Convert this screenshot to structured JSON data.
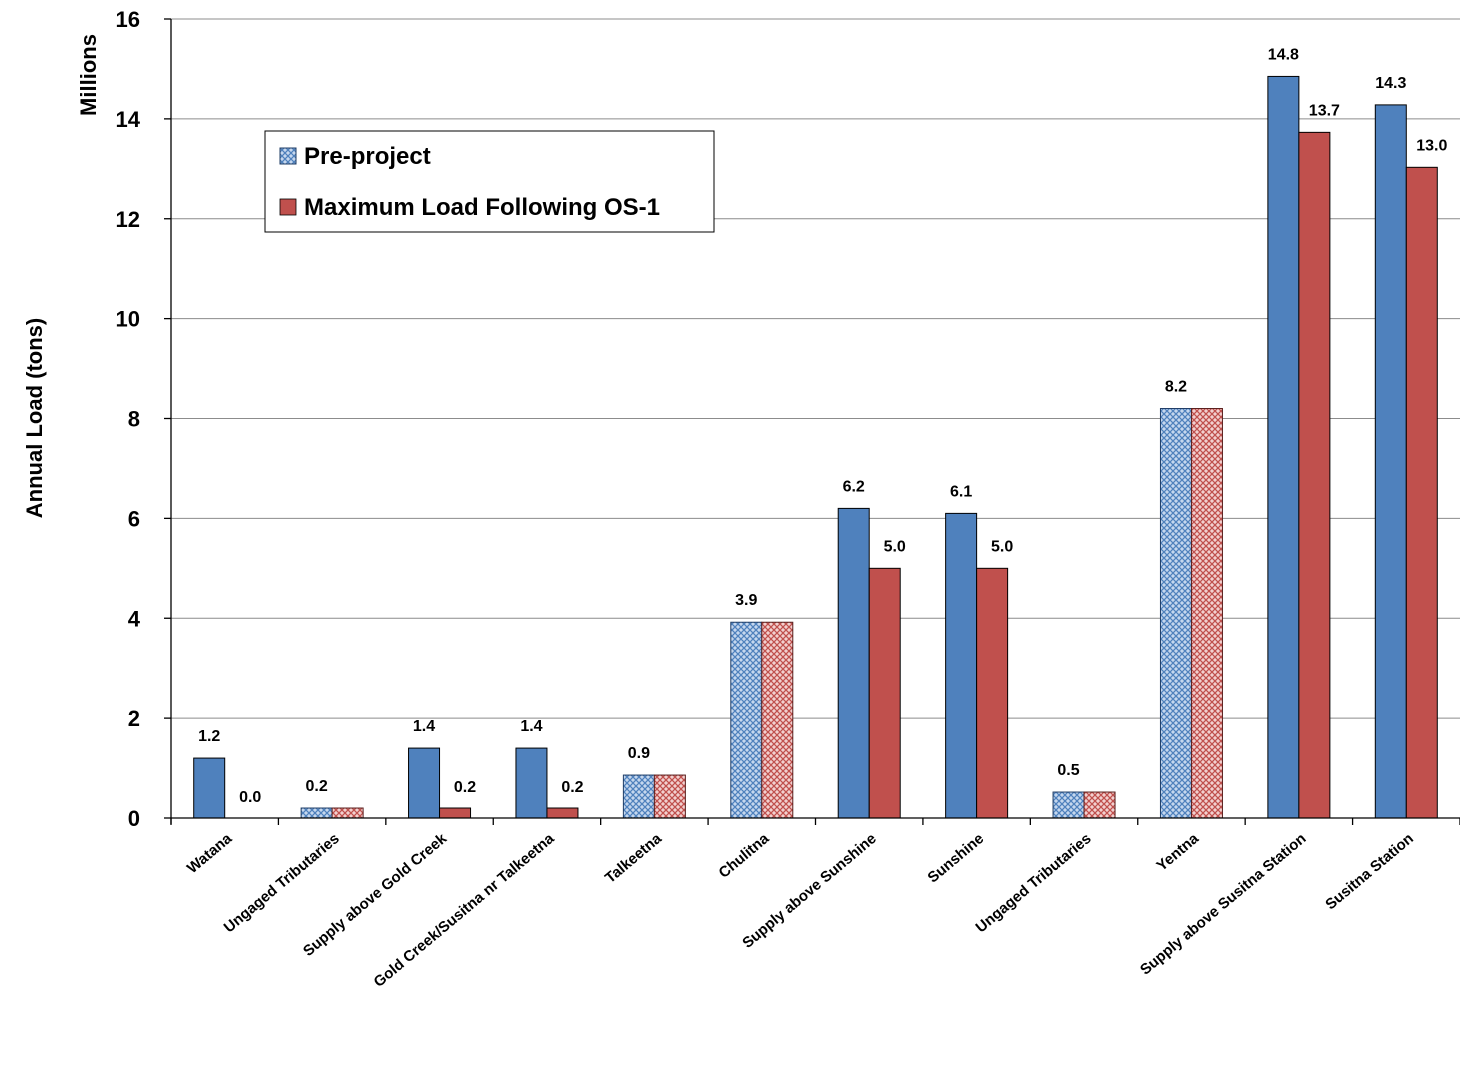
{
  "chart_data": {
    "type": "bar",
    "ylabel": "Annual Load (tons)",
    "yunit": "Millions",
    "ylim": [
      0,
      16
    ],
    "ytick_step": 2,
    "grid": true,
    "legend_position": "top-left",
    "categories": [
      "Watana",
      "Ungaged Tributaries",
      "Supply above Gold Creek",
      "Gold Creek/Susitna nr Talkeetna",
      "Talkeetna",
      "Chulitna",
      "Supply above Sunshine",
      "Sunshine",
      "Ungaged Tributaries",
      "Yentna",
      "Supply above Susitna Station",
      "Susitna Station"
    ],
    "patterned": [
      false,
      true,
      false,
      false,
      true,
      true,
      false,
      false,
      true,
      true,
      false,
      false
    ],
    "series": [
      {
        "name": "Pre-project",
        "color": "#4f81bd",
        "values": [
          1.2,
          0.2,
          1.4,
          1.4,
          0.86,
          3.92,
          6.2,
          6.1,
          0.52,
          8.2,
          14.85,
          14.28
        ],
        "labels": [
          "1.2",
          "0.2",
          "1.4",
          "1.4",
          "0.9",
          "3.9",
          "6.2",
          "6.1",
          "0.5",
          "8.2",
          "14.8",
          "14.3"
        ]
      },
      {
        "name": "Maximum Load Following OS-1",
        "color": "#c0504d",
        "values": [
          0.0,
          0.2,
          0.2,
          0.2,
          0.86,
          3.92,
          5.0,
          5.0,
          0.52,
          8.2,
          13.73,
          13.03
        ],
        "labels": [
          "0.0",
          "",
          "0.2",
          "0.2",
          "",
          "",
          "5.0",
          "5.0",
          "",
          "",
          "13.7",
          "13.0"
        ]
      }
    ]
  }
}
